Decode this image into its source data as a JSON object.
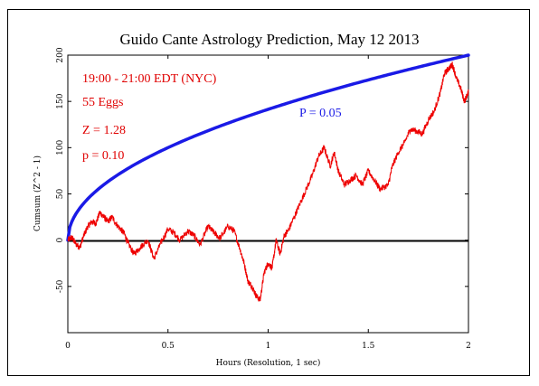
{
  "chart_data": {
    "type": "line",
    "title": "Guido Cante Astrology Prediction, May 12 2013",
    "xlabel": "Hours (Resolution, 1 sec)",
    "ylabel": "Cumsum (Z^2 - 1)",
    "xlim": [
      0,
      2
    ],
    "ylim": [
      -100,
      200
    ],
    "x_ticks": [
      "0",
      "0.5",
      "1",
      "1.5",
      "2"
    ],
    "y_ticks": [
      "-50",
      "0",
      "50",
      "100",
      "150",
      "200"
    ],
    "y_tick_values": [
      -50,
      0,
      50,
      100,
      150,
      200
    ],
    "annotations": {
      "time": "19:00 - 21:00 EDT (NYC)",
      "eggs": "55 Eggs",
      "z": "Z = 1.28",
      "p": "p = 0.10",
      "envelope_label": "P = 0.05"
    },
    "colors": {
      "data": "#ee0000",
      "envelope": "#1a1ae6",
      "zero_line": "#000000"
    },
    "series": [
      {
        "x": [
          0,
          0.02,
          0.04,
          0.06,
          0.08,
          0.1,
          0.12,
          0.14,
          0.16,
          0.18,
          0.2,
          0.22,
          0.25,
          0.28,
          0.3,
          0.33,
          0.36,
          0.4,
          0.43,
          0.46,
          0.5,
          0.53,
          0.56,
          0.6,
          0.63,
          0.66,
          0.7,
          0.73,
          0.76,
          0.8,
          0.83,
          0.86,
          0.88,
          0.9,
          0.92,
          0.94,
          0.96,
          0.98,
          1.0,
          1.02,
          1.04,
          1.06,
          1.08,
          1.1,
          1.13,
          1.16,
          1.19,
          1.22,
          1.25,
          1.28,
          1.31,
          1.33,
          1.35,
          1.38,
          1.41,
          1.44,
          1.47,
          1.5,
          1.53,
          1.56,
          1.6,
          1.62,
          1.65,
          1.68,
          1.71,
          1.74,
          1.77,
          1.8,
          1.83,
          1.86,
          1.88,
          1.9,
          1.92,
          1.94,
          1.96,
          1.98,
          2.0
        ],
        "values": [
          0,
          3,
          -4,
          -8,
          5,
          15,
          20,
          18,
          30,
          25,
          20,
          25,
          15,
          8,
          -3,
          -15,
          -8,
          0,
          -20,
          -5,
          12,
          8,
          0,
          10,
          5,
          -5,
          15,
          8,
          2,
          15,
          10,
          -10,
          -25,
          -45,
          -50,
          -60,
          -65,
          -35,
          -25,
          -30,
          0,
          -15,
          5,
          10,
          25,
          40,
          55,
          70,
          90,
          100,
          80,
          95,
          75,
          60,
          65,
          70,
          60,
          75,
          65,
          55,
          60,
          80,
          95,
          105,
          120,
          118,
          115,
          130,
          140,
          160,
          180,
          185,
          190,
          175,
          165,
          150,
          160
        ],
        "estimated": true
      }
    ],
    "envelope": {
      "x": [
        0,
        0.02,
        0.05,
        0.1,
        0.15,
        0.2,
        0.3,
        0.4,
        0.5,
        0.6,
        0.7,
        0.8,
        0.9,
        1.0,
        1.1,
        1.2,
        1.3,
        1.4,
        1.5,
        1.6,
        1.7,
        1.8,
        1.9,
        2.0
      ],
      "values": [
        0,
        21,
        32,
        45,
        55,
        63,
        77,
        89,
        100,
        110,
        118,
        126,
        134,
        141,
        148,
        154,
        161,
        167,
        173,
        179,
        184,
        189,
        195,
        200
      ]
    }
  }
}
